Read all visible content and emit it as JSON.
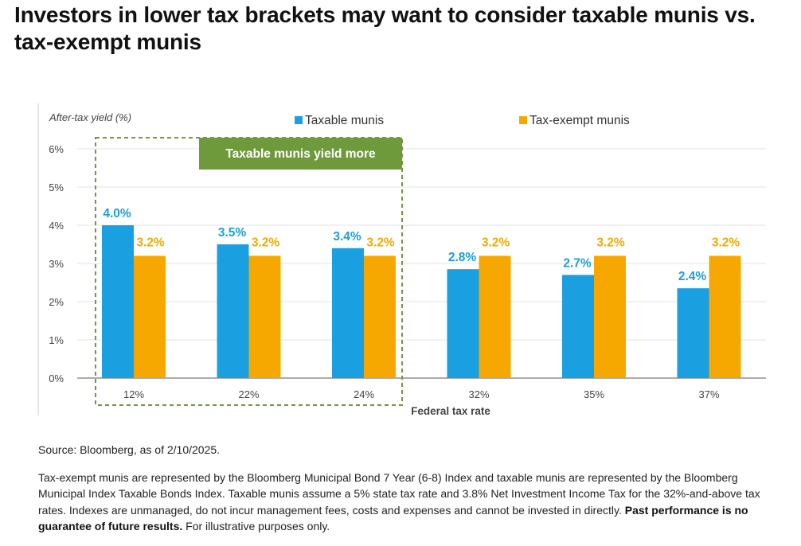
{
  "title": "Investors in lower tax brackets may want to consider taxable munis vs. tax-exempt munis",
  "chart_data": {
    "type": "bar",
    "ylabel": "After-tax yield (%)",
    "xlabel": "Federal tax rate",
    "categories": [
      "12%",
      "22%",
      "24%",
      "32%",
      "35%",
      "37%"
    ],
    "ylim": [
      0,
      6
    ],
    "yticks": [
      "0%",
      "1%",
      "2%",
      "3%",
      "4%",
      "5%",
      "6%"
    ],
    "series": [
      {
        "name": "Taxable munis",
        "color": "#1aa0e0",
        "values": [
          4.0,
          3.5,
          3.4,
          2.85,
          2.7,
          2.35
        ],
        "labels": [
          "4.0%",
          "3.5%",
          "3.4%",
          "2.8%",
          "2.7%",
          "2.4%"
        ]
      },
      {
        "name": "Tax-exempt munis",
        "color": "#f7a800",
        "values": [
          3.2,
          3.2,
          3.2,
          3.2,
          3.2,
          3.2
        ],
        "labels": [
          "3.2%",
          "3.2%",
          "3.2%",
          "3.2%",
          "3.2%",
          "3.2%"
        ]
      }
    ],
    "highlight": {
      "label": "Taxable munis yield more",
      "color": "#6f9a3c",
      "categories": [
        "12%",
        "22%",
        "24%"
      ]
    },
    "grid": true,
    "legend": "top"
  },
  "source": "Source: Bloomberg, as of 2/10/2025.",
  "notes": {
    "text": "Tax-exempt munis are represented by the Bloomberg Municipal Bond 7 Year (6-8) Index and taxable munis are represented by the Bloomberg Municipal Index Taxable Bonds Index. Taxable munis assume a 5% state tax rate and 3.8% Net Investment Income Tax for the 32%-and-above tax rates. Indexes are unmanaged, do not incur management fees, costs and expenses and cannot be invested in directly.",
    "bold": "Past performance is no guarantee of future results.",
    "tail": "For illustrative purposes only."
  }
}
